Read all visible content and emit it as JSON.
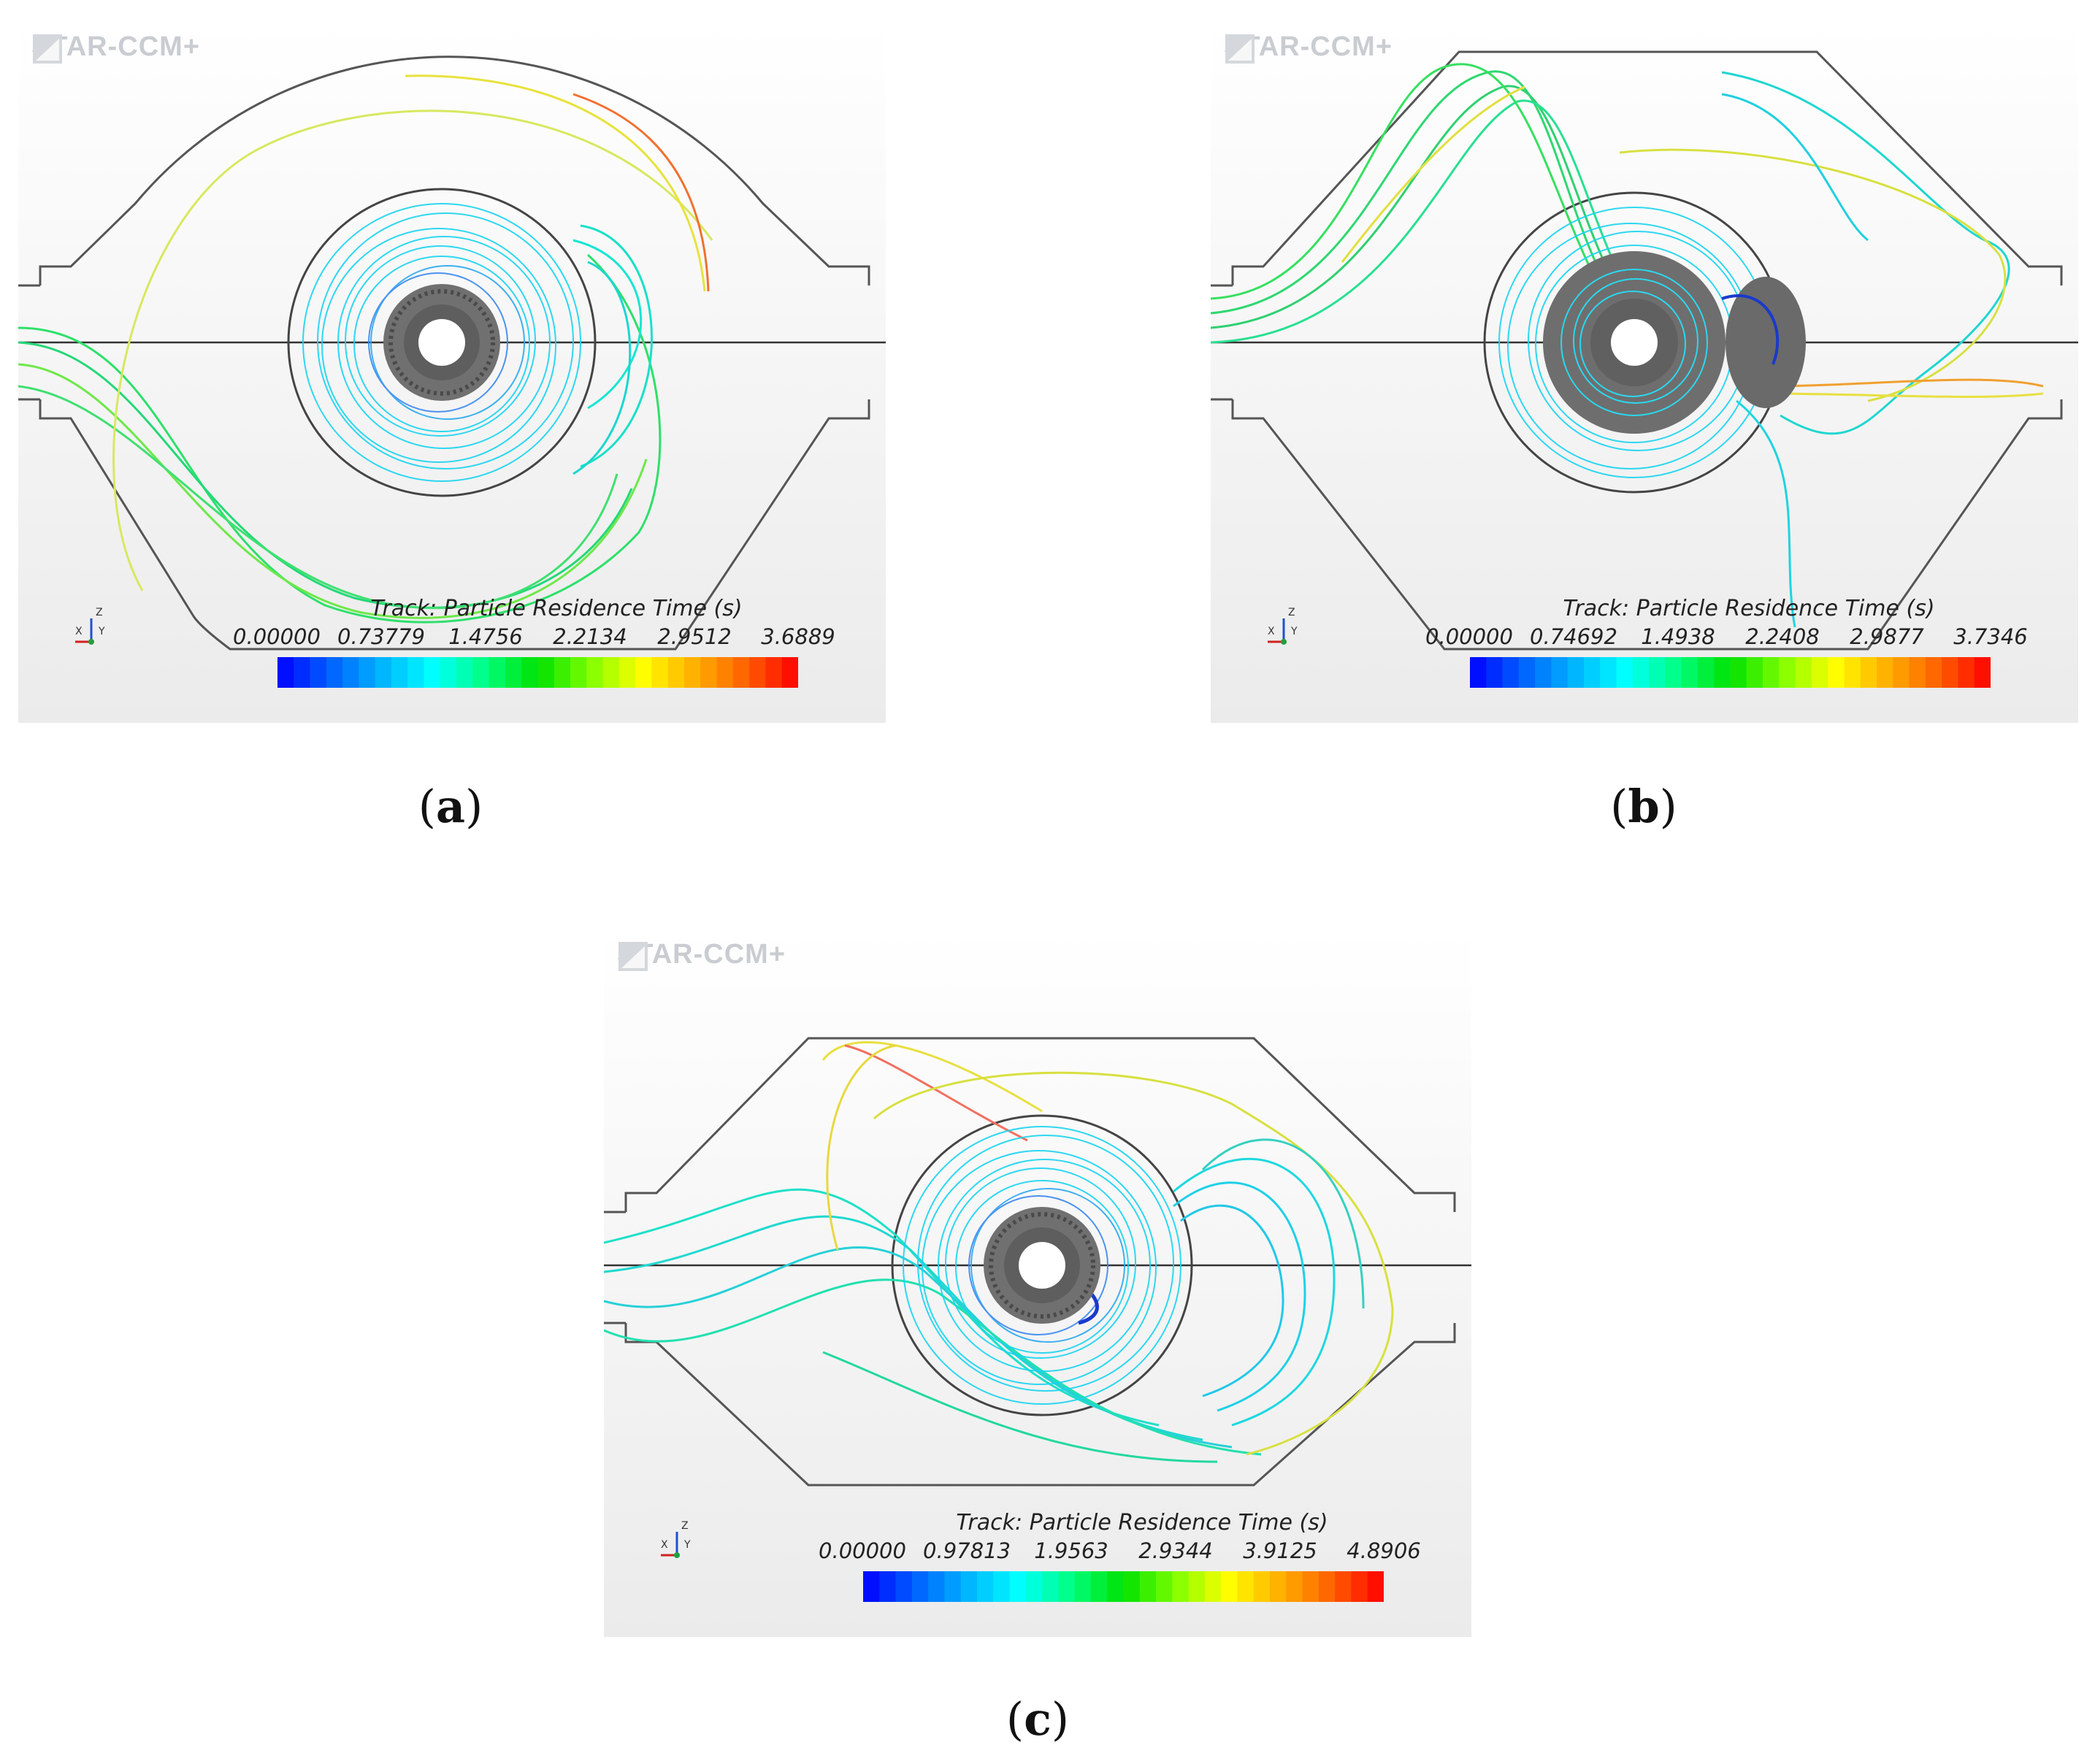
{
  "software_logo": "STAR-CCM+",
  "colormap_stops": [
    "#0000ff",
    "#0060ff",
    "#00b4ff",
    "#00ffff",
    "#00ff80",
    "#00e000",
    "#80ff00",
    "#ffff00",
    "#ffb000",
    "#ff6000",
    "#ff0000"
  ],
  "panels": [
    {
      "id": "a",
      "sublabel_open": "(",
      "sublabel_letter": "a",
      "sublabel_close": ")",
      "legend_title": "Track: Particle Residence Time (s)",
      "ticks": [
        "0.00000",
        "0.73779",
        "1.4756",
        "2.2134",
        "2.9512",
        "3.6889"
      ],
      "range": [
        0.0,
        3.6889
      ],
      "axis_labels": {
        "z": "Z",
        "x": "X",
        "y": "Y"
      }
    },
    {
      "id": "b",
      "sublabel_open": "(",
      "sublabel_letter": "b",
      "sublabel_close": ")",
      "legend_title": "Track: Particle Residence Time (s)",
      "ticks": [
        "0.00000",
        "0.74692",
        "1.4938",
        "2.2408",
        "2.9877",
        "3.7346"
      ],
      "range": [
        0.0,
        3.7346
      ],
      "axis_labels": {
        "z": "Z",
        "x": "X",
        "y": "Y"
      }
    },
    {
      "id": "c",
      "sublabel_open": "(",
      "sublabel_letter": "c",
      "sublabel_close": ")",
      "legend_title": "Track: Particle Residence Time (s)",
      "ticks": [
        "0.00000",
        "0.97813",
        "1.9563",
        "2.9344",
        "3.9125",
        "4.8906"
      ],
      "range": [
        0.0,
        4.8906
      ],
      "axis_labels": {
        "z": "Z",
        "x": "X",
        "y": "Y"
      }
    }
  ]
}
